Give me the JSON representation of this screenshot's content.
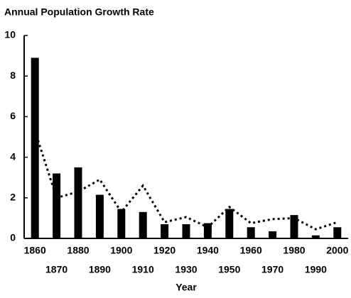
{
  "chart_data": {
    "type": "bar",
    "title": "Annual Population Growth Rate",
    "x_label": "Year",
    "categories": [
      "1860",
      "1870",
      "1880",
      "1890",
      "1900",
      "1910",
      "1920",
      "1930",
      "1940",
      "1950",
      "1960",
      "1970",
      "1980",
      "1990",
      "2000"
    ],
    "series": [
      {
        "type": "bar",
        "color": "#000000",
        "values": [
          8.9,
          3.2,
          3.5,
          2.15,
          1.45,
          1.3,
          0.7,
          0.7,
          0.75,
          1.45,
          0.55,
          0.35,
          1.15,
          0.15,
          0.55
        ]
      },
      {
        "type": "line",
        "color": "#000000",
        "dashed": true,
        "values": [
          5.3,
          2.0,
          2.3,
          2.9,
          1.3,
          2.6,
          0.8,
          1.05,
          0.55,
          1.55,
          0.75,
          0.95,
          1.0,
          0.45,
          0.8
        ]
      }
    ],
    "ylim": [
      0,
      10
    ],
    "yticks": [
      0,
      2,
      4,
      6,
      8,
      10
    ],
    "grid": false
  }
}
